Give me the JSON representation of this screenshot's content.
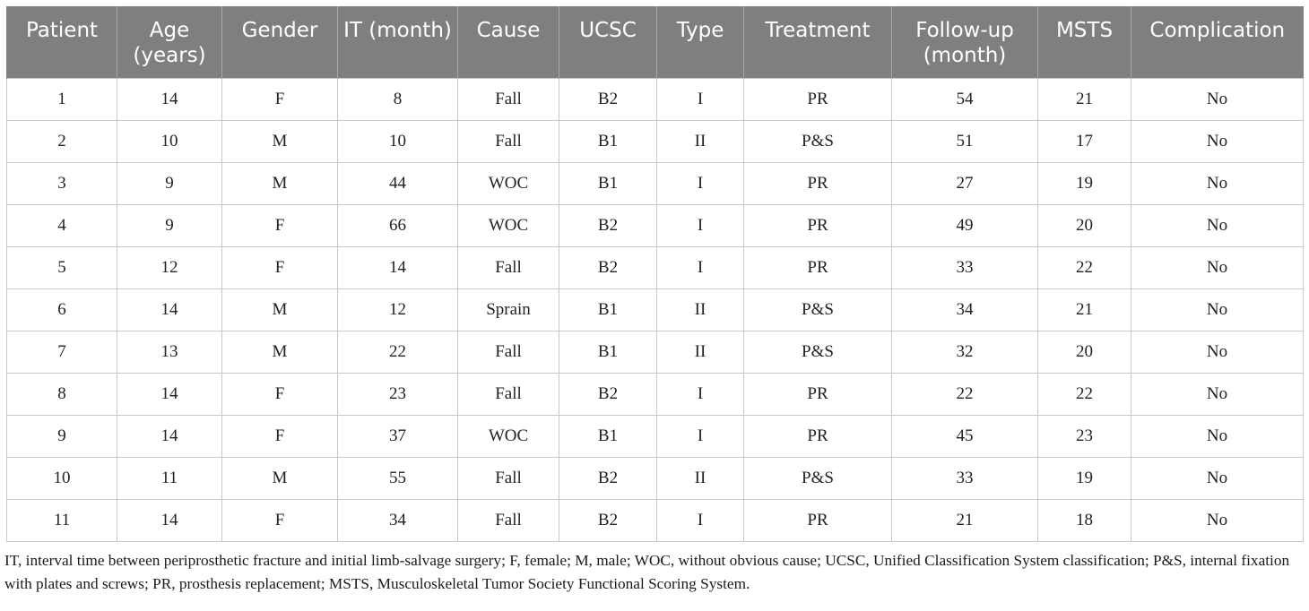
{
  "table": {
    "headers": [
      "Patient",
      "Age (years)",
      "Gender",
      "IT (month)",
      "Cause",
      "UCSC",
      "Type",
      "Treatment",
      "Follow-up (month)",
      "MSTS",
      "Complication"
    ],
    "rows": [
      [
        "1",
        "14",
        "F",
        "8",
        "Fall",
        "B2",
        "I",
        "PR",
        "54",
        "21",
        "No"
      ],
      [
        "2",
        "10",
        "M",
        "10",
        "Fall",
        "B1",
        "II",
        "P&S",
        "51",
        "17",
        "No"
      ],
      [
        "3",
        "9",
        "M",
        "44",
        "WOC",
        "B1",
        "I",
        "PR",
        "27",
        "19",
        "No"
      ],
      [
        "4",
        "9",
        "F",
        "66",
        "WOC",
        "B2",
        "I",
        "PR",
        "49",
        "20",
        "No"
      ],
      [
        "5",
        "12",
        "F",
        "14",
        "Fall",
        "B2",
        "I",
        "PR",
        "33",
        "22",
        "No"
      ],
      [
        "6",
        "14",
        "M",
        "12",
        "Sprain",
        "B1",
        "II",
        "P&S",
        "34",
        "21",
        "No"
      ],
      [
        "7",
        "13",
        "M",
        "22",
        "Fall",
        "B1",
        "II",
        "P&S",
        "32",
        "20",
        "No"
      ],
      [
        "8",
        "14",
        "F",
        "23",
        "Fall",
        "B2",
        "I",
        "PR",
        "22",
        "22",
        "No"
      ],
      [
        "9",
        "14",
        "F",
        "37",
        "WOC",
        "B1",
        "I",
        "PR",
        "45",
        "23",
        "No"
      ],
      [
        "10",
        "11",
        "M",
        "55",
        "Fall",
        "B2",
        "II",
        "P&S",
        "33",
        "19",
        "No"
      ],
      [
        "11",
        "14",
        "F",
        "34",
        "Fall",
        "B2",
        "I",
        "PR",
        "21",
        "18",
        "No"
      ]
    ]
  },
  "footnote": "IT, interval time between periprosthetic fracture and initial limb-salvage surgery; F, female; M, male; WOC, without obvious cause; UCSC, Unified Classification System classification; P&S, internal fixation with plates and screws; PR, prosthesis replacement; MSTS, Musculoskeletal Tumor Society Functional Scoring System.",
  "colors": {
    "header_bg": "#7f7f7f",
    "header_text": "#ffffff",
    "grid": "#c8c8c8"
  }
}
